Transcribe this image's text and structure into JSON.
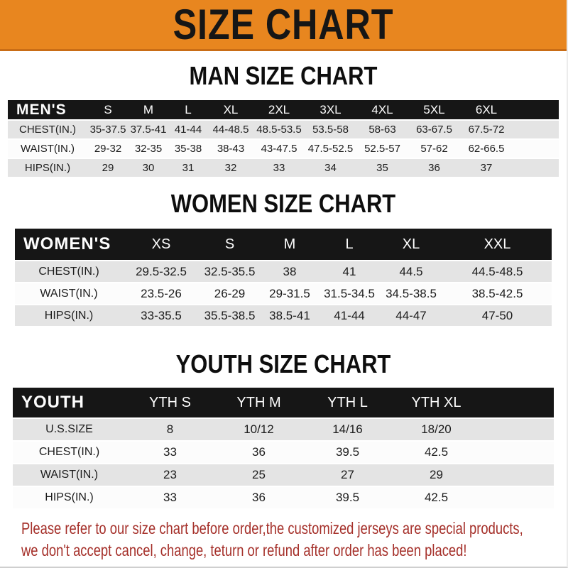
{
  "banner": {
    "title": "SIZE CHART"
  },
  "colors": {
    "banner_orange": "#e8861f",
    "table_header_black": "#161616",
    "row_gray": "#e4e4e4",
    "row_white": "#fcfcfc",
    "disclaimer_red": "#a5302a"
  },
  "sections": [
    {
      "title": "MAN SIZE CHART",
      "header": [
        "MEN'S",
        "S",
        "M",
        "L",
        "XL",
        "2XL",
        "3XL",
        "4XL",
        "5XL",
        "6XL"
      ],
      "rows": [
        [
          "CHEST(IN.)",
          "35-37.5",
          "37.5-41",
          "41-44",
          "44-48.5",
          "48.5-53.5",
          "53.5-58",
          "58-63",
          "63-67.5",
          "67.5-72"
        ],
        [
          "WAIST(IN.)",
          "29-32",
          "32-35",
          "35-38",
          "38-43",
          "43-47.5",
          "47.5-52.5",
          "52.5-57",
          "57-62",
          "62-66.5"
        ],
        [
          "HIPS(IN.)",
          "29",
          "30",
          "31",
          "32",
          "33",
          "34",
          "35",
          "36",
          "37"
        ]
      ]
    },
    {
      "title": "WOMEN SIZE CHART",
      "header": [
        "WOMEN'S",
        "XS",
        "S",
        "M",
        "L",
        "XL",
        "XXL"
      ],
      "rows": [
        [
          "CHEST(IN.)",
          "29.5-32.5",
          "32.5-35.5",
          "38",
          "41",
          "44.5",
          "44.5-48.5"
        ],
        [
          "WAIST(IN.)",
          "23.5-26",
          "26-29",
          "29-31.5",
          "31.5-34.5",
          "34.5-38.5",
          "38.5-42.5"
        ],
        [
          "HIPS(IN.)",
          "33-35.5",
          "35.5-38.5",
          "38.5-41",
          "41-44",
          "44-47",
          "47-50"
        ]
      ]
    },
    {
      "title": "YOUTH SIZE CHART",
      "header": [
        "YOUTH",
        "YTH S",
        "YTH M",
        "YTH L",
        "YTH XL"
      ],
      "rows": [
        [
          "U.S.SIZE",
          "8",
          "10/12",
          "14/16",
          "18/20"
        ],
        [
          "CHEST(IN.)",
          "33",
          "36",
          "39.5",
          "42.5"
        ],
        [
          "WAIST(IN.)",
          "23",
          "25",
          "27",
          "29"
        ],
        [
          "HIPS(IN.)",
          "33",
          "36",
          "39.5",
          "42.5"
        ]
      ]
    }
  ],
  "footer": {
    "lines": [
      "Please refer to our size chart before order,the customized jerseys are special products,",
      "we don't accept cancel, change, teturn or refund after order has been placed!"
    ]
  }
}
